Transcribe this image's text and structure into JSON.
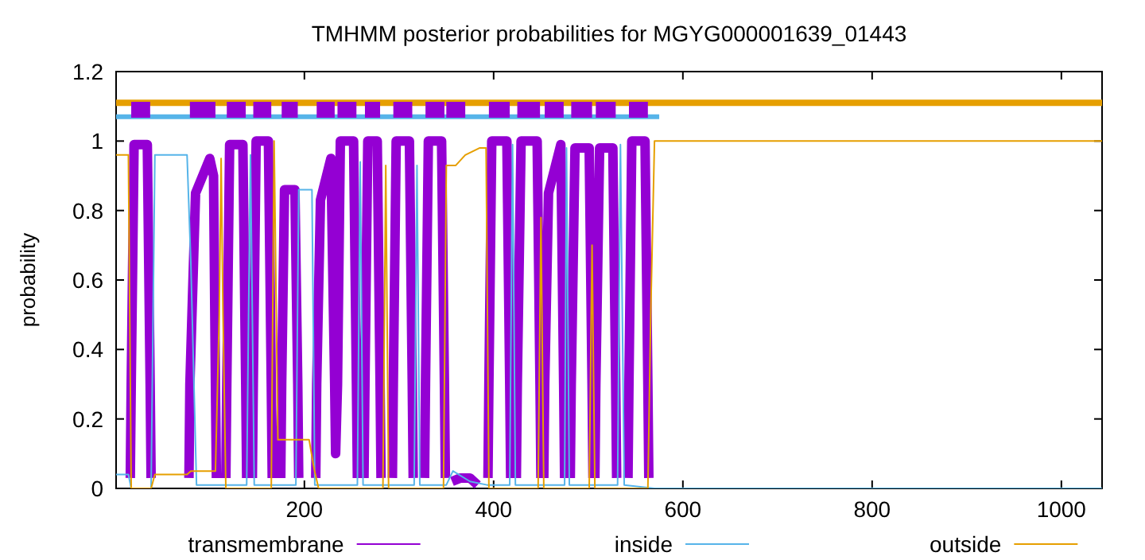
{
  "chart_data": {
    "type": "line",
    "title": "TMHMM posterior probabilities for MGYG000001639_01443",
    "ylabel": "probability",
    "xlim": [
      1,
      1043
    ],
    "ylim": [
      0,
      1.2
    ],
    "xticks": [
      200,
      400,
      600,
      800,
      1000
    ],
    "yticks": [
      0,
      0.2,
      0.4,
      0.6,
      0.8,
      1,
      1.2
    ],
    "grid": false,
    "legend": "bottom",
    "marker": "none",
    "line_style": "solid",
    "series": [
      {
        "name": "transmembrane",
        "color": "#9400d3",
        "x": [
          16,
          17,
          20,
          34,
          37,
          38,
          null,
          78,
          79,
          85,
          100,
          104,
          106,
          107,
          null,
          117,
          118,
          121,
          135,
          138,
          139,
          null,
          145,
          146,
          149,
          162,
          165,
          166,
          null,
          175,
          176,
          179,
          190,
          193,
          194,
          null,
          212,
          213,
          217,
          228,
          232,
          233,
          235,
          238,
          252,
          255,
          256,
          null,
          263,
          264,
          267,
          277,
          280,
          281,
          null,
          293,
          294,
          297,
          311,
          314,
          315,
          null,
          327,
          328,
          331,
          345,
          348,
          349,
          null,
          356,
          365,
          375,
          383,
          null,
          394,
          395,
          398,
          414,
          417,
          418,
          null,
          424,
          425,
          429,
          446,
          449,
          450,
          null,
          453,
          454,
          458,
          471,
          474,
          475,
          null,
          481,
          482,
          486,
          501,
          504,
          505,
          null,
          507,
          508,
          512,
          526,
          529,
          530,
          null,
          542,
          543,
          546,
          560,
          563,
          564
        ],
        "values": [
          0.03,
          0.3,
          0.99,
          0.99,
          0.3,
          0.03,
          null,
          0.03,
          0.3,
          0.85,
          0.95,
          0.9,
          0.3,
          0.03,
          null,
          0.03,
          0.3,
          0.99,
          0.99,
          0.3,
          0.03,
          null,
          0.03,
          0.3,
          1,
          1,
          0.3,
          0.03,
          null,
          0.03,
          0.3,
          0.86,
          0.86,
          0.3,
          0.03,
          null,
          0.03,
          0.3,
          0.83,
          0.95,
          0.3,
          0.1,
          0.3,
          1,
          1,
          0.3,
          0.03,
          null,
          0.03,
          0.3,
          1,
          1,
          0.3,
          0.03,
          null,
          0.03,
          0.3,
          1,
          1,
          0.3,
          0.03,
          null,
          0.03,
          0.3,
          1,
          1,
          0.3,
          0.03,
          null,
          0.02,
          0.03,
          0.03,
          0.01,
          null,
          0.03,
          0.3,
          1,
          1,
          0.3,
          0.03,
          null,
          0.03,
          0.3,
          1,
          1,
          0.3,
          0.03,
          null,
          0.03,
          0.3,
          0.85,
          0.99,
          0.3,
          0.03,
          null,
          0.03,
          0.3,
          0.98,
          0.98,
          0.3,
          0.03,
          null,
          0.03,
          0.3,
          0.98,
          0.98,
          0.3,
          0.03,
          null,
          0.03,
          0.3,
          1,
          1,
          0.3,
          0.03
        ]
      },
      {
        "name": "inside",
        "color": "#56b4e9",
        "x": [
          1,
          14,
          17,
          38,
          42,
          76,
          80,
          86,
          139,
          141,
          143,
          145,
          147,
          191,
          194,
          208,
          211,
          256,
          259,
          262,
          316,
          319,
          322,
          350,
          357,
          375,
          393,
          417,
          420,
          423,
          475,
          477,
          480,
          531,
          534,
          538,
          570,
          1043
        ],
        "values": [
          0.04,
          0.04,
          0,
          0,
          0.96,
          0.96,
          0.65,
          0.01,
          0.01,
          0.5,
          0.96,
          0.5,
          0.01,
          0.01,
          0.86,
          0.86,
          0.01,
          0.01,
          0.94,
          0.01,
          0.01,
          0.93,
          0.01,
          0.01,
          0.05,
          0.02,
          0.01,
          0.01,
          0.99,
          0.01,
          0.01,
          0.98,
          0.01,
          0.01,
          0.99,
          0.01,
          0,
          0
        ]
      },
      {
        "name": "outside",
        "color": "#e69f00",
        "x": [
          1,
          14,
          17,
          38,
          42,
          76,
          80,
          106,
          110,
          112,
          114,
          117,
          165,
          168,
          172,
          205,
          210,
          215,
          283,
          286,
          289,
          347,
          350,
          360,
          370,
          385,
          392,
          395,
          447,
          450,
          453,
          501,
          504,
          507,
          563,
          566,
          570,
          1043
        ],
        "values": [
          0.96,
          0.96,
          0,
          0,
          0.04,
          0.04,
          0.05,
          0.05,
          0.5,
          0.95,
          0.5,
          0,
          0,
          1,
          0.14,
          0.14,
          0.06,
          0,
          0,
          0.93,
          0,
          0,
          0.93,
          0.93,
          0.96,
          0.98,
          0.98,
          0,
          0,
          0.78,
          0,
          0,
          0.7,
          0,
          0,
          0.5,
          1,
          1
        ]
      },
      {
        "color": "#e69f00",
        "x": [
          1,
          1043
        ],
        "values": [
          1.11,
          1.11
        ]
      },
      {
        "color": "#56b4e9",
        "x": [
          1,
          575
        ],
        "values": [
          1.07,
          1.07
        ]
      },
      {
        "color": "#9400d3",
        "x": [
          17,
          37,
          null,
          79,
          106,
          null,
          118,
          138,
          null,
          146,
          165,
          null,
          176,
          193,
          null,
          213,
          232,
          null,
          235,
          255,
          null,
          264,
          280,
          null,
          294,
          314,
          null,
          328,
          348,
          null,
          350,
          370,
          null,
          395,
          417,
          null,
          425,
          449,
          null,
          454,
          474,
          null,
          482,
          504,
          null,
          508,
          529,
          null,
          543,
          563
        ],
        "values": [
          1.09,
          1.09,
          null,
          1.09,
          1.09,
          null,
          1.09,
          1.09,
          null,
          1.09,
          1.09,
          null,
          1.09,
          1.09,
          null,
          1.09,
          1.09,
          null,
          1.09,
          1.09,
          null,
          1.09,
          1.09,
          null,
          1.09,
          1.09,
          null,
          1.09,
          1.09,
          null,
          1.09,
          1.09,
          null,
          1.09,
          1.09,
          null,
          1.09,
          1.09,
          null,
          1.09,
          1.09,
          null,
          1.09,
          1.09,
          null,
          1.09,
          1.09,
          null,
          1.09,
          1.09
        ]
      }
    ]
  }
}
